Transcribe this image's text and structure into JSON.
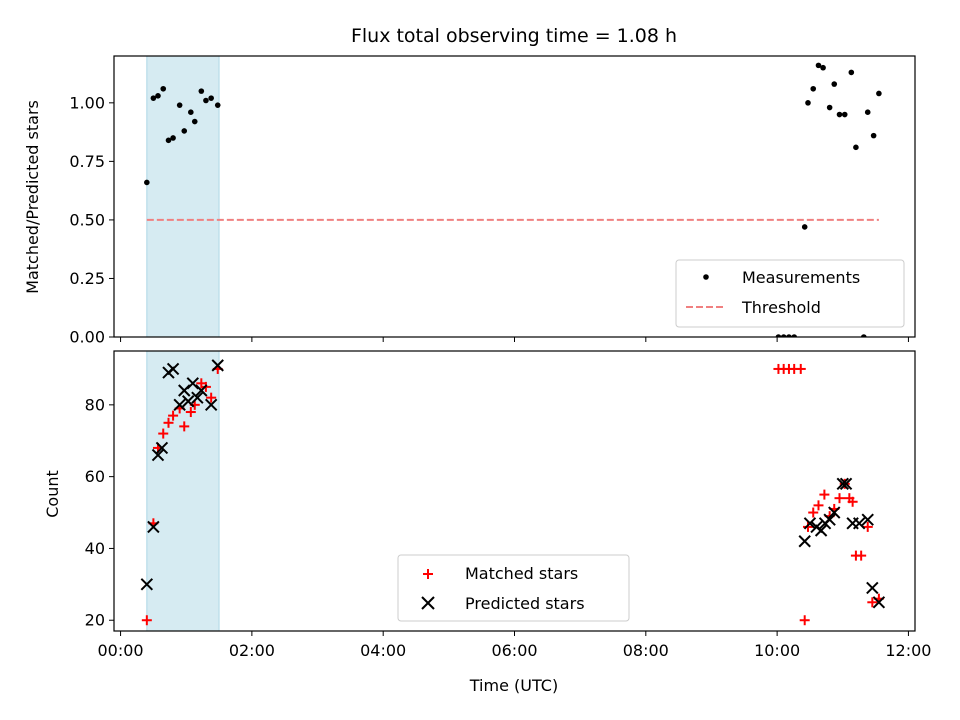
{
  "title": "Flux total observing time = 1.08 h",
  "colors": {
    "measurement": "#000000",
    "threshold": "#f08080",
    "matched": "#ff0000",
    "predicted": "#000000",
    "shade": "#add8e6"
  },
  "chart_data": [
    {
      "type": "scatter",
      "ylabel": "Matched/Predicted stars",
      "xlabel": "",
      "x_unit": "hours UTC",
      "xlim": [
        -0.1,
        12.1
      ],
      "ylim": [
        0,
        1.2
      ],
      "xticks": [
        0,
        2,
        4,
        6,
        8,
        10,
        12
      ],
      "yticks": [
        0.0,
        0.25,
        0.5,
        0.75,
        1.0
      ],
      "ytick_labels": [
        "0.00",
        "0.25",
        "0.50",
        "0.75",
        "1.00"
      ],
      "shaded_span": [
        0.4,
        1.5
      ],
      "legend_position": "lower right",
      "legend": [
        "Measurements",
        "Threshold"
      ],
      "series": [
        {
          "name": "Measurements",
          "marker": "dot",
          "points": [
            [
              0.4,
              0.66
            ],
            [
              0.5,
              1.02
            ],
            [
              0.57,
              1.03
            ],
            [
              0.65,
              1.06
            ],
            [
              0.73,
              0.84
            ],
            [
              0.8,
              0.85
            ],
            [
              0.9,
              0.99
            ],
            [
              0.97,
              0.88
            ],
            [
              1.07,
              0.96
            ],
            [
              1.13,
              0.92
            ],
            [
              1.23,
              1.05
            ],
            [
              1.3,
              1.01
            ],
            [
              1.38,
              1.02
            ],
            [
              1.48,
              0.99
            ],
            [
              10.02,
              0.0
            ],
            [
              10.1,
              0.0
            ],
            [
              10.18,
              0.0
            ],
            [
              10.26,
              0.0
            ],
            [
              10.42,
              0.47
            ],
            [
              10.47,
              1.0
            ],
            [
              10.55,
              1.06
            ],
            [
              10.63,
              1.16
            ],
            [
              10.7,
              1.15
            ],
            [
              10.8,
              0.98
            ],
            [
              10.87,
              1.08
            ],
            [
              10.95,
              0.95
            ],
            [
              11.03,
              0.95
            ],
            [
              11.13,
              1.13
            ],
            [
              11.2,
              0.81
            ],
            [
              11.32,
              0.0
            ],
            [
              11.38,
              0.96
            ],
            [
              11.47,
              0.86
            ],
            [
              11.55,
              1.04
            ]
          ]
        },
        {
          "name": "Threshold",
          "style": "dashed",
          "points": [
            [
              0.4,
              0.5
            ],
            [
              11.55,
              0.5
            ]
          ]
        }
      ]
    },
    {
      "type": "scatter",
      "ylabel": "Count",
      "xlabel": "Time (UTC)",
      "x_unit": "hours UTC",
      "xlim": [
        -0.1,
        12.1
      ],
      "ylim": [
        17,
        95
      ],
      "xticks": [
        0,
        2,
        4,
        6,
        8,
        10,
        12
      ],
      "xtick_labels": [
        "00:00",
        "02:00",
        "04:00",
        "06:00",
        "08:00",
        "10:00",
        "12:00"
      ],
      "yticks": [
        20,
        40,
        60,
        80
      ],
      "ytick_labels": [
        "20",
        "40",
        "60",
        "80"
      ],
      "shaded_span": [
        0.4,
        1.5
      ],
      "legend_position": "lower center",
      "legend": [
        "Matched stars",
        "Predicted stars"
      ],
      "series": [
        {
          "name": "Matched stars",
          "marker": "plus",
          "points": [
            [
              0.4,
              20
            ],
            [
              0.5,
              47
            ],
            [
              0.57,
              68
            ],
            [
              0.65,
              72
            ],
            [
              0.73,
              75
            ],
            [
              0.8,
              77
            ],
            [
              0.9,
              79
            ],
            [
              0.97,
              74
            ],
            [
              1.07,
              78
            ],
            [
              1.13,
              80
            ],
            [
              1.23,
              86
            ],
            [
              1.3,
              85
            ],
            [
              1.38,
              82
            ],
            [
              1.48,
              90
            ],
            [
              10.02,
              90
            ],
            [
              10.1,
              90
            ],
            [
              10.18,
              90
            ],
            [
              10.26,
              90
            ],
            [
              10.36,
              90
            ],
            [
              10.42,
              20
            ],
            [
              10.47,
              46
            ],
            [
              10.55,
              50
            ],
            [
              10.63,
              52
            ],
            [
              10.72,
              55
            ],
            [
              10.8,
              49
            ],
            [
              10.87,
              51
            ],
            [
              10.95,
              54
            ],
            [
              11.03,
              58
            ],
            [
              11.1,
              54
            ],
            [
              11.15,
              53
            ],
            [
              11.2,
              38
            ],
            [
              11.28,
              38
            ],
            [
              11.38,
              46
            ],
            [
              11.45,
              25
            ],
            [
              11.55,
              26
            ]
          ]
        },
        {
          "name": "Predicted stars",
          "marker": "x",
          "points": [
            [
              0.4,
              30
            ],
            [
              0.5,
              46
            ],
            [
              0.57,
              66
            ],
            [
              0.63,
              68
            ],
            [
              0.73,
              89
            ],
            [
              0.8,
              90
            ],
            [
              0.9,
              80
            ],
            [
              0.97,
              84
            ],
            [
              1.03,
              81
            ],
            [
              1.1,
              86
            ],
            [
              1.17,
              82
            ],
            [
              1.23,
              84
            ],
            [
              1.38,
              80
            ],
            [
              1.48,
              91
            ],
            [
              10.42,
              42
            ],
            [
              10.5,
              47
            ],
            [
              10.6,
              46
            ],
            [
              10.67,
              45
            ],
            [
              10.73,
              47
            ],
            [
              10.8,
              48
            ],
            [
              10.87,
              50
            ],
            [
              11.0,
              58
            ],
            [
              11.05,
              58
            ],
            [
              11.15,
              47
            ],
            [
              11.25,
              47
            ],
            [
              11.38,
              48
            ],
            [
              11.45,
              29
            ],
            [
              11.55,
              25
            ]
          ]
        }
      ]
    }
  ]
}
